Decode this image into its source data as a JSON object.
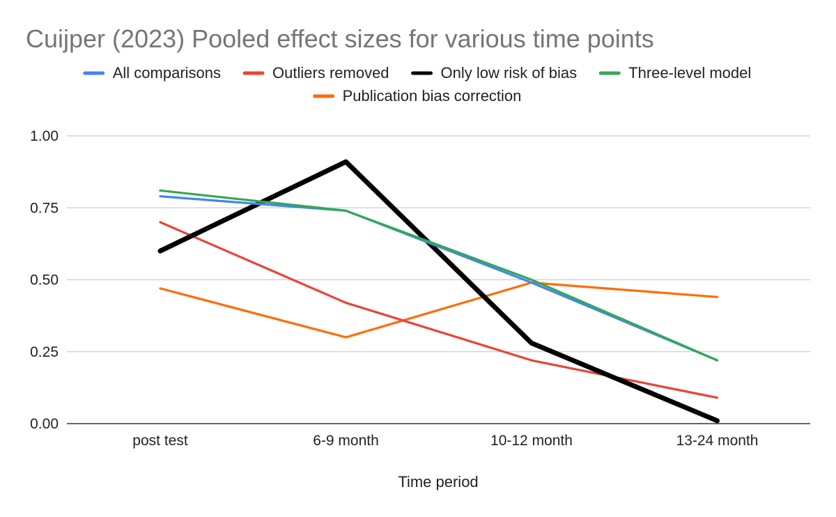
{
  "chart_data": {
    "type": "line",
    "title": "Cuijper (2023) Pooled effect sizes for various time points",
    "xlabel": "Time period",
    "ylabel": "",
    "categories": [
      "post test",
      "6-9 month",
      "10-12 month",
      "13-24 month"
    ],
    "ylim": [
      0,
      1
    ],
    "yticks": [
      0,
      0.25,
      0.5,
      0.75,
      1
    ],
    "ytick_labels": [
      "0.00",
      "0.25",
      "0.50",
      "0.75",
      "1.00"
    ],
    "grid": true,
    "legend_position": "top",
    "series": [
      {
        "name": "All comparisons",
        "color": "#4285f4",
        "values": [
          0.79,
          0.74,
          0.49,
          0.22
        ]
      },
      {
        "name": "Outliers removed",
        "color": "#ea4335",
        "values": [
          0.7,
          0.42,
          0.22,
          0.09
        ]
      },
      {
        "name": "Only low risk of bias",
        "color": "#000000",
        "values": [
          0.6,
          0.91,
          0.28,
          0.01
        ]
      },
      {
        "name": "Three-level model",
        "color": "#34a853",
        "values": [
          0.81,
          0.74,
          0.5,
          0.22
        ]
      },
      {
        "name": "Publication bias correction",
        "color": "#ff6d01",
        "values": [
          0.47,
          0.3,
          0.49,
          0.44
        ]
      }
    ]
  }
}
